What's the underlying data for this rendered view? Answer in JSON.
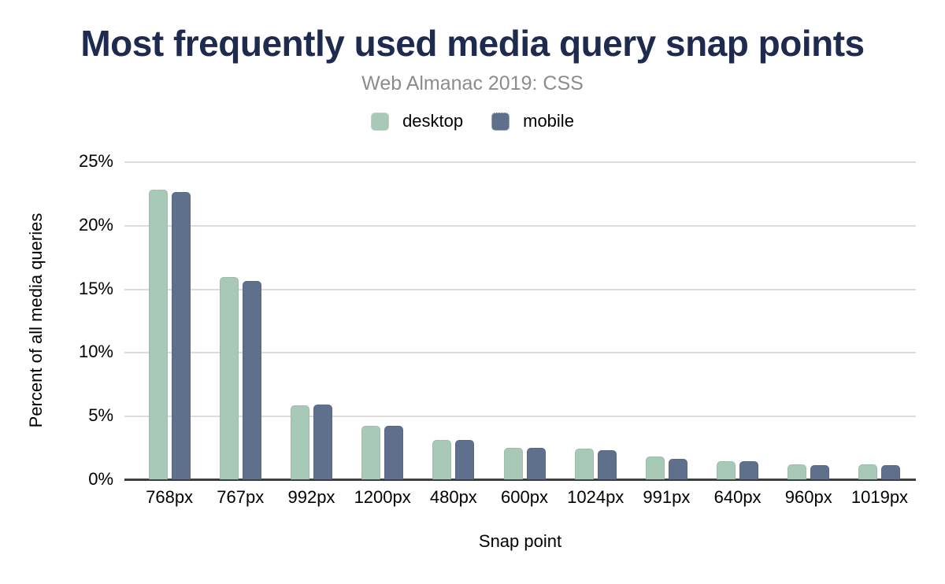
{
  "header": {
    "title": "Most frequently used media query snap points",
    "subtitle": "Web Almanac 2019: CSS"
  },
  "legend": {
    "items": [
      {
        "label": "desktop",
        "color": "#a9c9b8"
      },
      {
        "label": "mobile",
        "color": "#5f708c"
      }
    ]
  },
  "colors": {
    "title": "#1e2b4f",
    "subtitle": "#8c8c8c",
    "desktop": "#a9c9b8",
    "mobile": "#5f708c",
    "gridline": "#dcdcdc",
    "axis_line": "#3f3f3f",
    "tick_text": "#000000"
  },
  "chart_data": {
    "type": "bar",
    "title": "Most frequently used media query snap points",
    "subtitle": "Web Almanac 2019: CSS",
    "categories": [
      "768px",
      "767px",
      "992px",
      "1200px",
      "480px",
      "600px",
      "1024px",
      "991px",
      "640px",
      "960px",
      "1019px"
    ],
    "series": [
      {
        "name": "desktop",
        "values": [
          22.8,
          15.9,
          5.8,
          4.2,
          3.1,
          2.5,
          2.4,
          1.8,
          1.4,
          1.2,
          1.2
        ]
      },
      {
        "name": "mobile",
        "values": [
          22.6,
          15.6,
          5.9,
          4.2,
          3.1,
          2.5,
          2.3,
          1.6,
          1.4,
          1.1,
          1.1
        ]
      }
    ],
    "xlabel": "Snap point",
    "ylabel": "Percent of all media queries",
    "ylim": [
      0,
      25
    ],
    "ytick_values": [
      0,
      5,
      10,
      15,
      20,
      25
    ],
    "ytick_labels": [
      "0%",
      "5%",
      "10%",
      "15%",
      "20%",
      "25%"
    ],
    "grid": true,
    "legend_position": "top-center"
  }
}
